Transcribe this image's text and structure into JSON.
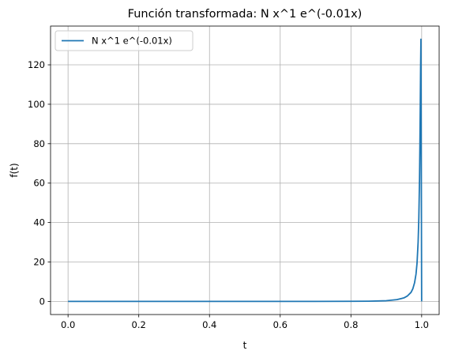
{
  "chart_data": {
    "type": "line",
    "title": "Función transformada: N x^1 e^(-0.01x)",
    "xlabel": "t",
    "ylabel": "f(t)",
    "xlim": [
      -0.0495,
      1.0495
    ],
    "ylim": [
      -6.65,
      139.65
    ],
    "grid": true,
    "legend_placement": "top-left",
    "xticks": [
      0.0,
      0.2,
      0.4,
      0.6,
      0.8,
      1.0
    ],
    "xtick_labels": [
      "0.0",
      "0.2",
      "0.4",
      "0.6",
      "0.8",
      "1.0"
    ],
    "yticks": [
      0,
      20,
      40,
      60,
      80,
      100,
      120
    ],
    "ytick_labels": [
      "0",
      "20",
      "40",
      "60",
      "80",
      "100",
      "120"
    ],
    "series": [
      {
        "name": "N x^1 e^(-0.01x)",
        "color": "#1f77b4",
        "x": [
          0.0,
          0.1,
          0.2,
          0.3,
          0.4,
          0.5,
          0.6,
          0.7,
          0.8,
          0.85,
          0.9,
          0.93,
          0.95,
          0.96,
          0.97,
          0.975,
          0.98,
          0.984,
          0.987,
          0.99,
          0.992,
          0.994,
          0.995,
          0.996,
          0.997,
          0.998,
          1.0
        ],
        "y": [
          0.0,
          0.0,
          0.0,
          0.0,
          0.0,
          0.0,
          0.0,
          0.01,
          0.05,
          0.12,
          0.35,
          0.9,
          1.8,
          2.8,
          4.6,
          6.4,
          9.5,
          13.8,
          19.5,
          30,
          42,
          62,
          78,
          97,
          118,
          133,
          0
        ]
      }
    ]
  }
}
